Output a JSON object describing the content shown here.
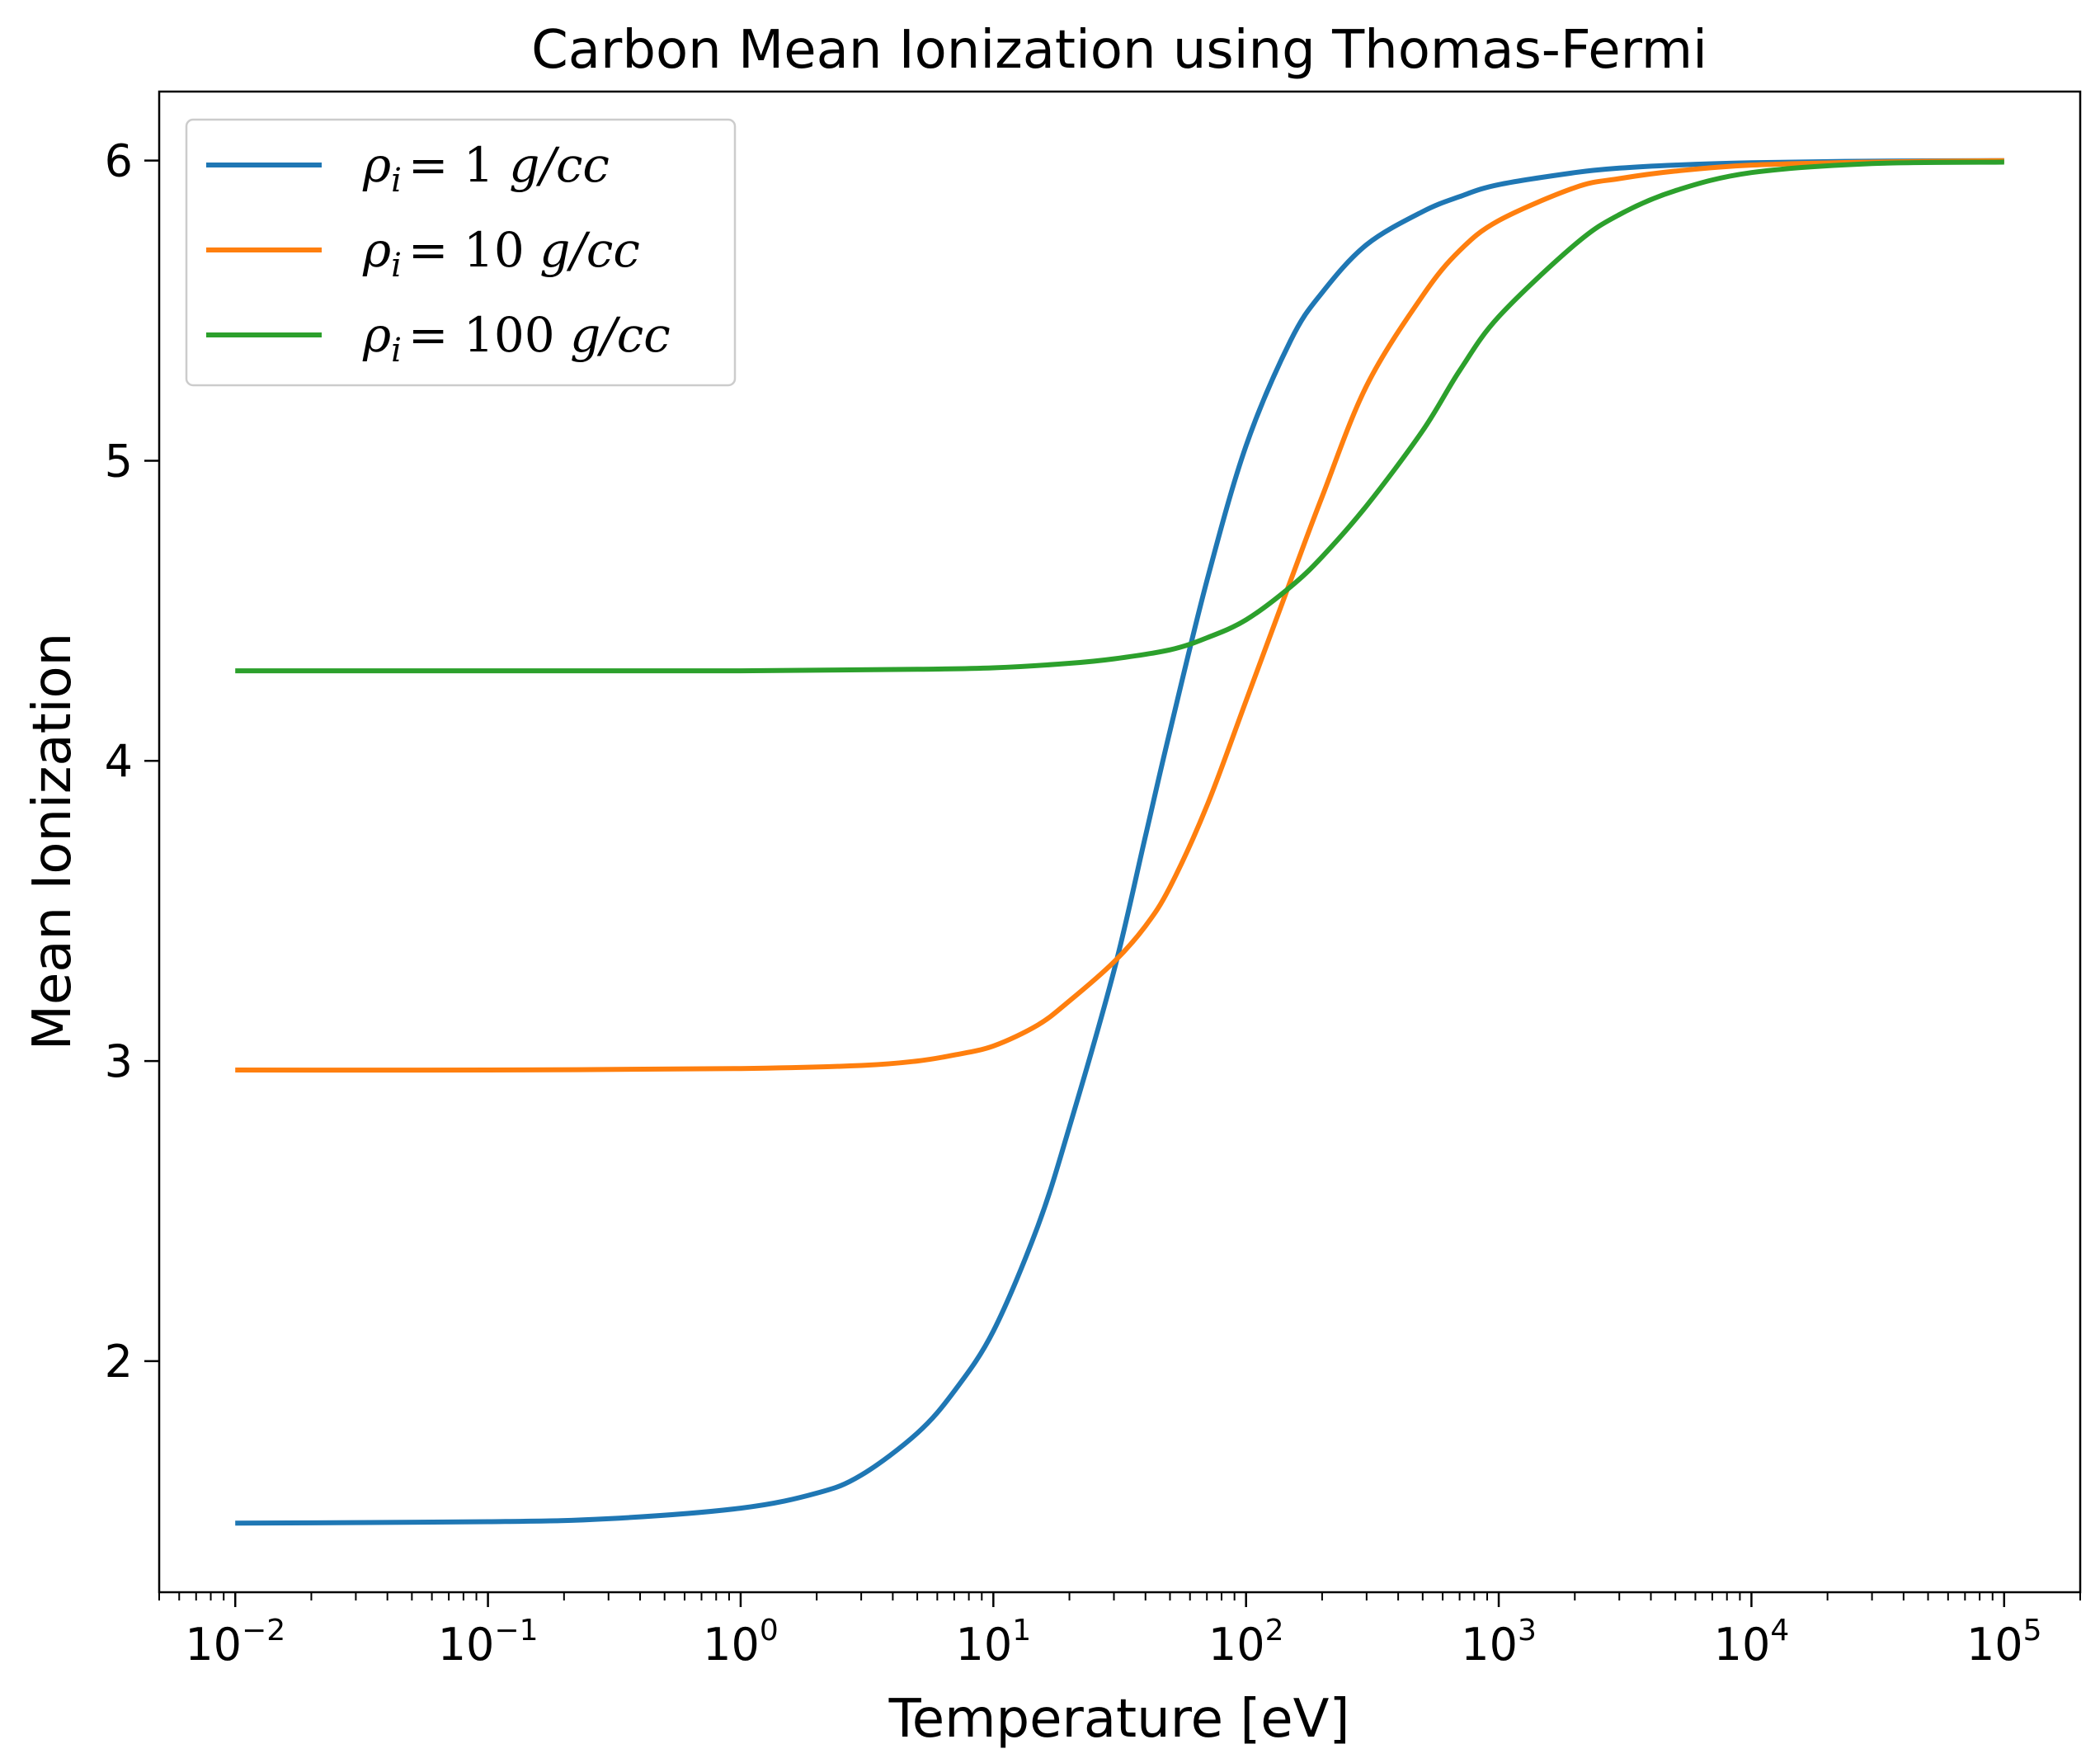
{
  "chart_data": {
    "type": "line",
    "title": "Carbon Mean Ionization using Thomas-Fermi",
    "xlabel": "Temperature [eV]",
    "ylabel": "Mean Ionization",
    "xscale": "log",
    "xlim": [
      0.005,
      200000
    ],
    "ylim": [
      1.23,
      6.23
    ],
    "x_ticks": [
      {
        "value": 0.01,
        "base": "10",
        "exp": "−2"
      },
      {
        "value": 0.1,
        "base": "10",
        "exp": "−1"
      },
      {
        "value": 1,
        "base": "10",
        "exp": "0"
      },
      {
        "value": 10,
        "base": "10",
        "exp": "1"
      },
      {
        "value": 100,
        "base": "10",
        "exp": "2"
      },
      {
        "value": 1000,
        "base": "10",
        "exp": "3"
      },
      {
        "value": 10000,
        "base": "10",
        "exp": "4"
      },
      {
        "value": 100000,
        "base": "10",
        "exp": "5"
      }
    ],
    "y_ticks": [
      {
        "value": 2,
        "label": "2"
      },
      {
        "value": 3,
        "label": "3"
      },
      {
        "value": 4,
        "label": "4"
      },
      {
        "value": 5,
        "label": "5"
      },
      {
        "value": 6,
        "label": "6"
      }
    ],
    "grid": false,
    "legend_position": "top-left",
    "series": [
      {
        "name_symbol": "ρ",
        "name_sub": "i",
        "name_value": "= 1",
        "name_unit": "g/cc",
        "color": "#1f77b4",
        "x": [
          0.01,
          0.1,
          0.3,
          1,
          2,
          3,
          5,
          7,
          10,
          15,
          20,
          30,
          40,
          50,
          70,
          100,
          150,
          200,
          300,
          500,
          700,
          1000,
          2000,
          3000,
          5000,
          10000,
          30000,
          100000
        ],
        "y": [
          1.46,
          1.465,
          1.475,
          1.51,
          1.56,
          1.62,
          1.76,
          1.9,
          2.1,
          2.45,
          2.78,
          3.3,
          3.75,
          4.1,
          4.6,
          5.05,
          5.4,
          5.56,
          5.72,
          5.83,
          5.88,
          5.92,
          5.96,
          5.975,
          5.985,
          5.993,
          5.998,
          6.0
        ]
      },
      {
        "name_symbol": "ρ",
        "name_sub": "i",
        "name_value": "= 10",
        "name_unit": "g/cc",
        "color": "#ff7f0e",
        "x": [
          0.01,
          0.1,
          1,
          3,
          5,
          7,
          10,
          15,
          20,
          30,
          40,
          50,
          70,
          100,
          150,
          200,
          300,
          500,
          700,
          1000,
          2000,
          3000,
          5000,
          10000,
          30000,
          100000
        ],
        "y": [
          2.97,
          2.97,
          2.975,
          2.985,
          3.0,
          3.02,
          3.05,
          3.12,
          3.2,
          3.33,
          3.45,
          3.58,
          3.85,
          4.2,
          4.6,
          4.88,
          5.25,
          5.55,
          5.7,
          5.8,
          5.91,
          5.94,
          5.965,
          5.985,
          5.995,
          6.0
        ]
      },
      {
        "name_symbol": "ρ",
        "name_sub": "i",
        "name_value": "= 100",
        "name_unit": "g/cc",
        "color": "#2ca02c",
        "x": [
          0.01,
          0.1,
          1,
          5,
          10,
          20,
          30,
          50,
          70,
          100,
          150,
          200,
          300,
          500,
          700,
          1000,
          2000,
          3000,
          5000,
          10000,
          30000,
          100000
        ],
        "y": [
          4.3,
          4.3,
          4.3,
          4.305,
          4.31,
          4.325,
          4.34,
          4.37,
          4.41,
          4.47,
          4.58,
          4.68,
          4.85,
          5.1,
          5.3,
          5.48,
          5.72,
          5.82,
          5.9,
          5.96,
          5.99,
          5.995
        ]
      }
    ]
  }
}
